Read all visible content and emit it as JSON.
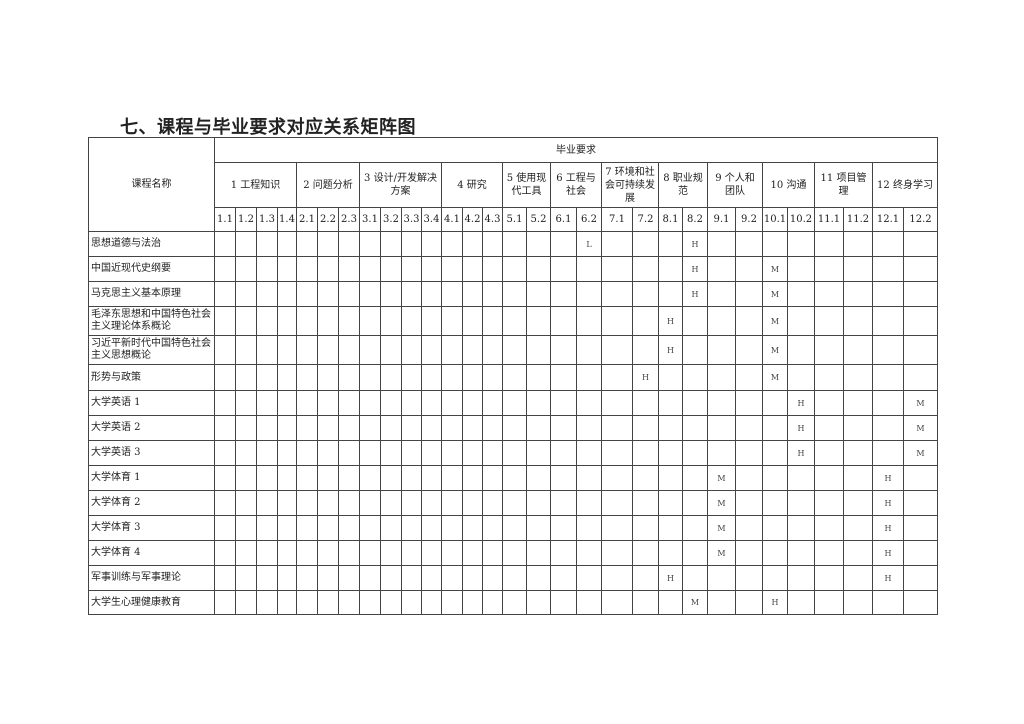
{
  "title": "七、课程与毕业要求对应关系矩阵图",
  "header": {
    "course_name_label": "课程名称",
    "requirements_label": "毕业要求",
    "groups": [
      {
        "label": "1 工程知识",
        "subs": [
          "1.1",
          "1.2",
          "1.3",
          "1.4"
        ]
      },
      {
        "label": "2 问题分析",
        "subs": [
          "2.1",
          "2.2",
          "2.3"
        ]
      },
      {
        "label": "3 设计/开发解决方案",
        "subs": [
          "3.1",
          "3.2",
          "3.3",
          "3.4"
        ]
      },
      {
        "label": "4 研究",
        "subs": [
          "4.1",
          "4.2",
          "4.3"
        ]
      },
      {
        "label": "5 使用现代工具",
        "subs": [
          "5.1",
          "5.2"
        ]
      },
      {
        "label": "6 工程与社会",
        "subs": [
          "6.1",
          "6.2"
        ]
      },
      {
        "label": "7 环境和社会可持续发展",
        "subs": [
          "7.1",
          "7.2"
        ]
      },
      {
        "label": "8 职业规范",
        "subs": [
          "8.1",
          "8.2"
        ]
      },
      {
        "label": "9 个人和团队",
        "subs": [
          "9.1",
          "9.2"
        ]
      },
      {
        "label": "10 沟通",
        "subs": [
          "10.1",
          "10.2"
        ]
      },
      {
        "label": "11 项目管理",
        "subs": [
          "11.1",
          "11.2"
        ]
      },
      {
        "label": "12 终身学习",
        "subs": [
          "12.1",
          "12.2"
        ]
      }
    ]
  },
  "rows": [
    {
      "course": "思想道德与法治",
      "marks": {
        "6.2": "L",
        "8.2": "H"
      }
    },
    {
      "course": "中国近现代史纲要",
      "marks": {
        "8.2": "H",
        "10.1": "M"
      }
    },
    {
      "course": "马克思主义基本原理",
      "marks": {
        "8.2": "H",
        "10.1": "M"
      }
    },
    {
      "course": "毛泽东思想和中国特色社会主义理论体系概论",
      "marks": {
        "8.1": "H",
        "10.1": "M"
      }
    },
    {
      "course": "习近平新时代中国特色社会主义思想概论",
      "marks": {
        "8.1": "H",
        "10.1": "M"
      }
    },
    {
      "course": "形势与政策",
      "marks": {
        "7.2": "H",
        "10.1": "M"
      }
    },
    {
      "course": "大学英语 1",
      "marks": {
        "10.2": "H",
        "12.2": "M"
      }
    },
    {
      "course": "大学英语 2",
      "marks": {
        "10.2": "H",
        "12.2": "M"
      }
    },
    {
      "course": "大学英语 3",
      "marks": {
        "10.2": "H",
        "12.2": "M"
      }
    },
    {
      "course": "大学体育 1",
      "marks": {
        "9.1": "M",
        "12.1": "H"
      }
    },
    {
      "course": "大学体育 2",
      "marks": {
        "9.1": "M",
        "12.1": "H"
      }
    },
    {
      "course": "大学体育 3",
      "marks": {
        "9.1": "M",
        "12.1": "H"
      }
    },
    {
      "course": "大学体育 4",
      "marks": {
        "9.1": "M",
        "12.1": "H"
      }
    },
    {
      "course": "军事训练与军事理论",
      "marks": {
        "8.1": "H",
        "12.1": "H"
      }
    },
    {
      "course": "大学生心理健康教育",
      "marks": {
        "8.2": "M",
        "10.1": "H"
      }
    }
  ]
}
